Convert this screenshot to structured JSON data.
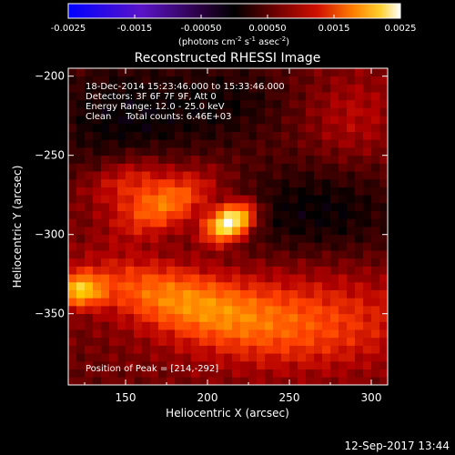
{
  "chart_data": {
    "type": "heatmap",
    "title": "Reconstructed RHESSI Image",
    "xlabel": "Heliocentric X (arcsec)",
    "ylabel": "Heliocentric Y (arcsec)",
    "xlim": [
      115,
      310
    ],
    "ylim": [
      -395,
      -195
    ],
    "x_ticks": [
      150,
      200,
      250,
      300
    ],
    "y_ticks": [
      -200,
      -250,
      -300,
      -350
    ],
    "colorbar": {
      "range": [
        -0.0025,
        0.0025
      ],
      "ticks": [
        "-0.0025",
        "-0.0015",
        "-0.00050",
        "0.00050",
        "0.0015",
        "0.0025"
      ],
      "tick_values": [
        -0.0025,
        -0.0015,
        -0.0005,
        0.0005,
        0.0015,
        0.0025
      ],
      "units_main": "(photons cm",
      "units_exp1": "-2",
      "units_mid1": " s",
      "units_exp2": "-1",
      "units_mid2": " asec",
      "units_exp3": "-2",
      "units_end": ")"
    },
    "annotations": {
      "time_range": "18-Dec-2014 15:23:46.000 to 15:33:46.000",
      "detectors": "Detectors: 3F 6F 7F 9F, Att 0",
      "energy": "Energy Range: 12.0 - 25.0 keV",
      "clean": "Clean     Total counts: 6.46E+03",
      "peak": "Position of Peak = [214,-292]"
    },
    "peak_position": [
      214,
      -292
    ],
    "sources": [
      {
        "x": 214,
        "y": -292,
        "amplitude": 0.0027,
        "sigma_major": 11,
        "sigma_minor": 7,
        "angle_deg": 30
      },
      {
        "x": 175,
        "y": -280,
        "amplitude": 0.0013,
        "sigma_major": 22,
        "sigma_minor": 11,
        "angle_deg": 25
      },
      {
        "x": 150,
        "y": -265,
        "amplitude": 0.0007,
        "sigma_major": 18,
        "sigma_minor": 10,
        "angle_deg": 20
      },
      {
        "x": 122,
        "y": -335,
        "amplitude": 0.0016,
        "sigma_major": 10,
        "sigma_minor": 7,
        "angle_deg": 0
      },
      {
        "x": 180,
        "y": -340,
        "amplitude": 0.0011,
        "sigma_major": 40,
        "sigma_minor": 14,
        "angle_deg": -15
      },
      {
        "x": 255,
        "y": -355,
        "amplitude": 0.0009,
        "sigma_major": 55,
        "sigma_minor": 22,
        "angle_deg": 0
      },
      {
        "x": 290,
        "y": -225,
        "amplitude": 0.0004,
        "sigma_major": 20,
        "sigma_minor": 20,
        "angle_deg": 0
      }
    ],
    "negative_regions": [
      {
        "x": 150,
        "y": -225,
        "amplitude": -0.0006,
        "sigma_major": 35,
        "sigma_minor": 25,
        "angle_deg": 0
      },
      {
        "x": 265,
        "y": -285,
        "amplitude": -0.0006,
        "sigma_major": 40,
        "sigma_minor": 20,
        "angle_deg": 0
      },
      {
        "x": 215,
        "y": -215,
        "amplitude": -0.0004,
        "sigma_major": 25,
        "sigma_minor": 18,
        "angle_deg": 0
      }
    ],
    "background_level": 0.0001,
    "colormap": [
      "#0000ff",
      "#3a0ad8",
      "#6a0aa8",
      "#3a0050",
      "#000000",
      "#500000",
      "#b40000",
      "#ff4000",
      "#ff9000",
      "#ffd000",
      "#ffffff"
    ]
  },
  "timestamp": "12-Sep-2017 13:44"
}
